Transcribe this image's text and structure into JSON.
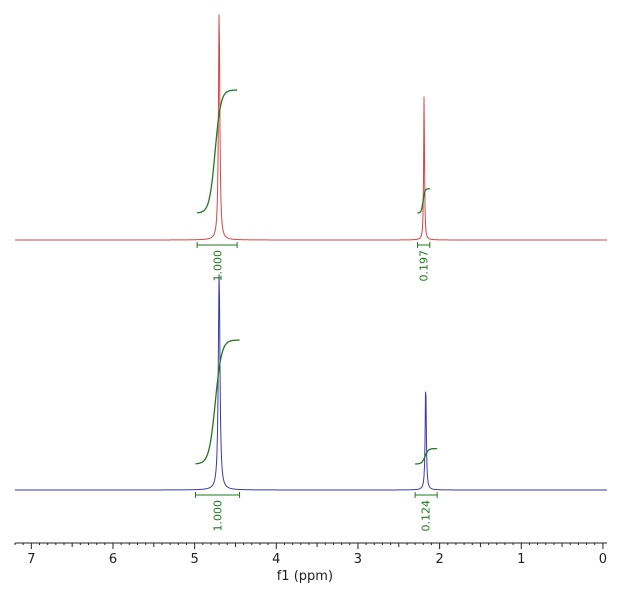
{
  "chart_data": {
    "type": "line",
    "title": "",
    "xlabel": "f1 (ppm)",
    "ylabel": "",
    "xlim": [
      7.2,
      -0.05
    ],
    "x_reversed": true,
    "x_ticks": [
      {
        "value": 7,
        "label": "7"
      },
      {
        "value": 6,
        "label": "6"
      },
      {
        "value": 5,
        "label": "5"
      },
      {
        "value": 4,
        "label": "4"
      },
      {
        "value": 3,
        "label": "3"
      },
      {
        "value": 2,
        "label": "2"
      },
      {
        "value": 1,
        "label": "1"
      },
      {
        "value": 0,
        "label": "0"
      }
    ],
    "grid": false,
    "legend": "none",
    "integral_color": "#1e7a1e",
    "series": [
      {
        "color": "#d44545",
        "peaks": [
          {
            "ppm": 4.7,
            "height": 1.0,
            "width": 0.01
          },
          {
            "ppm": 2.19,
            "height": 0.64,
            "width": 0.006
          }
        ],
        "integrals": [
          {
            "from": 4.97,
            "to": 4.48,
            "center": 4.72,
            "label": "1.000"
          },
          {
            "from": 2.27,
            "to": 2.12,
            "center": 2.2,
            "label": "0.197"
          }
        ]
      },
      {
        "color": "#3a3aa8",
        "peaks": [
          {
            "ppm": 4.7,
            "height": 1.0,
            "width": 0.012
          },
          {
            "ppm": 2.17,
            "height": 0.5,
            "width": 0.008
          }
        ],
        "integrals": [
          {
            "from": 4.99,
            "to": 4.45,
            "center": 4.72,
            "label": "1.000"
          },
          {
            "from": 2.3,
            "to": 2.03,
            "center": 2.17,
            "label": "0.124"
          }
        ]
      }
    ]
  }
}
